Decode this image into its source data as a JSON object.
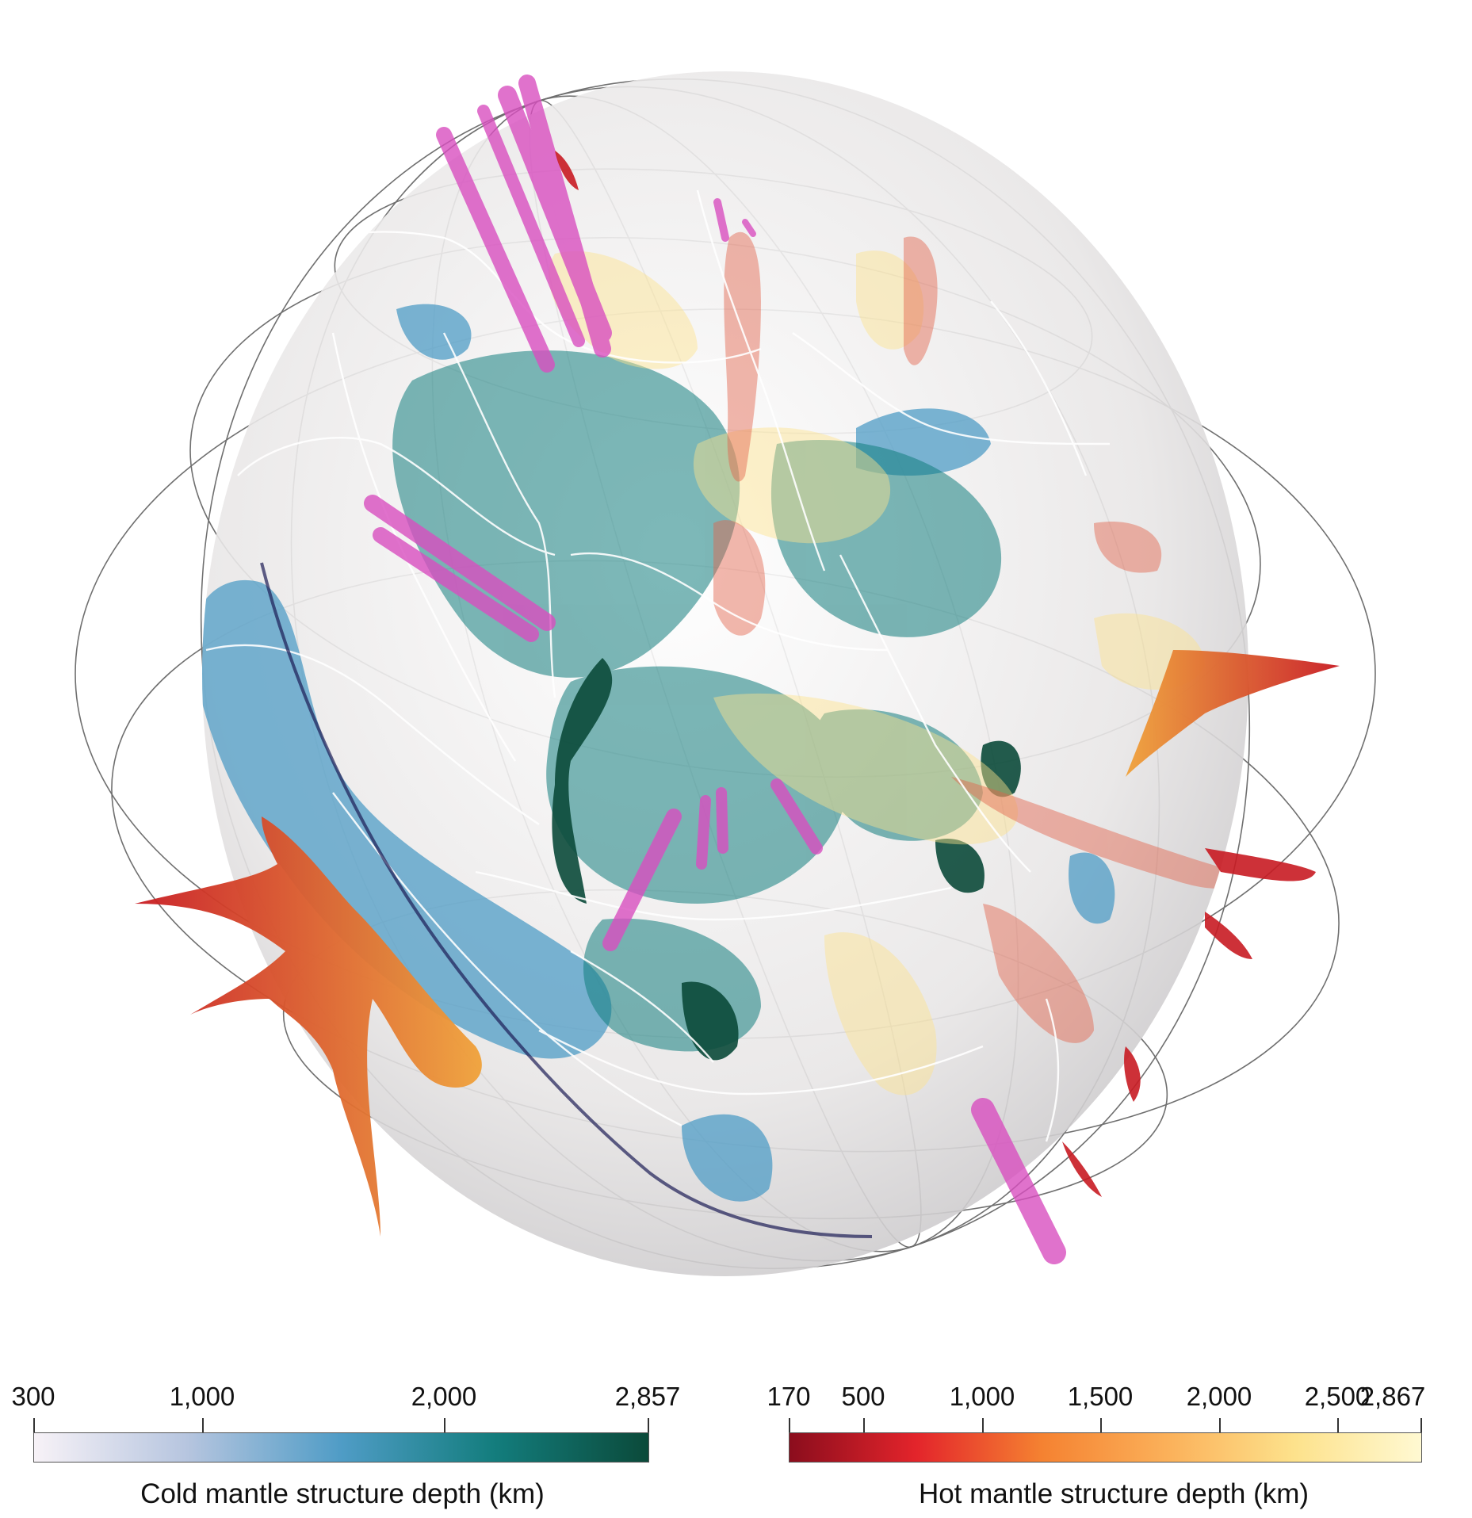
{
  "figure": {
    "cold_bar": {
      "title": "Cold mantle structure depth (km)",
      "ticks": [
        "300",
        "1,000",
        "2,000",
        "2,857"
      ],
      "tick_values": [
        300,
        1000,
        2000,
        2857
      ],
      "range": [
        300,
        2857
      ],
      "colors": [
        "#f7f2f7",
        "#b6c5df",
        "#4f9cc6",
        "#137d7d",
        "#0b4a3a"
      ]
    },
    "hot_bar": {
      "title": "Hot mantle structure depth (km)",
      "ticks": [
        "170",
        "500",
        "1,000",
        "1,500",
        "2,000",
        "2,500",
        "2,867"
      ],
      "tick_values": [
        170,
        500,
        1000,
        1500,
        2000,
        2500,
        2867
      ],
      "range": [
        170,
        2867
      ],
      "colors": [
        "#8b0d1d",
        "#e3242b",
        "#f58231",
        "#fbb15a",
        "#fde28c",
        "#fff9d2"
      ]
    },
    "globe": {
      "feature_colors": {
        "cold_shallow": "#e7e4e6",
        "cold_mid": "#4f9cc6",
        "cold_deep": "#0b5a4a",
        "hot_deep": "#fbe9b3",
        "hot_shallow": "#c81b22",
        "highlight": "#d94fc0",
        "coastline": "#ffffff",
        "graticule": "#222222"
      }
    }
  }
}
